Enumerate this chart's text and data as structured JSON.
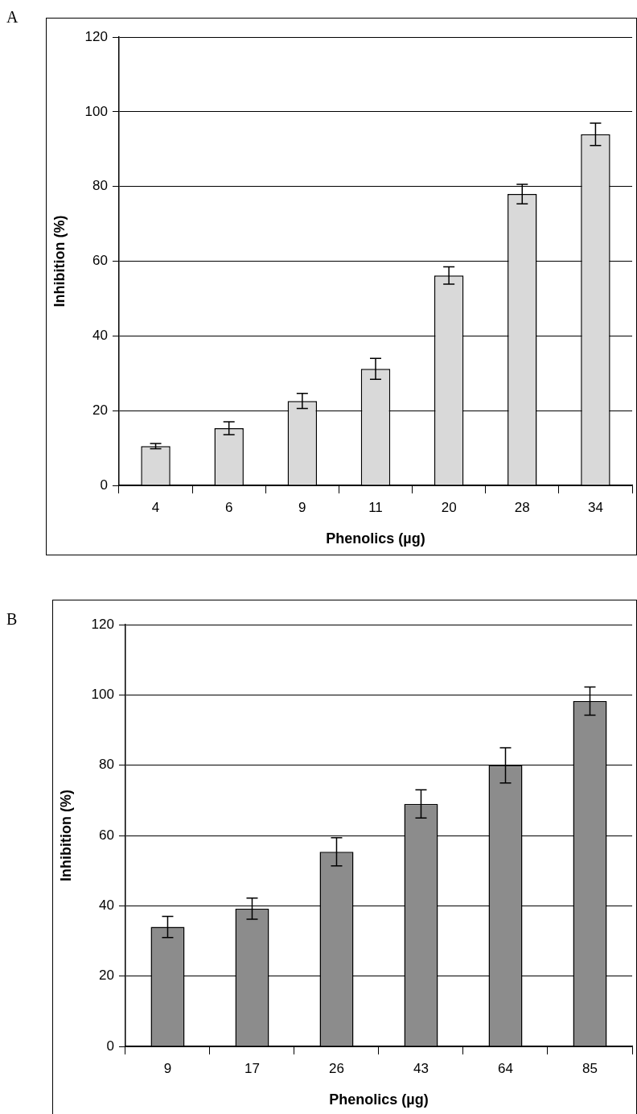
{
  "chart_data": [
    {
      "type": "bar",
      "title": "A",
      "xlabel": "Phenolics (µg)",
      "ylabel": "Inhibition (%)",
      "categories": [
        "4",
        "6",
        "9",
        "11",
        "20",
        "28",
        "34"
      ],
      "values": [
        10.5,
        15.3,
        22.6,
        31.2,
        56.2,
        78,
        94
      ],
      "errors": [
        0.7,
        1.7,
        2,
        2.8,
        2.3,
        2.6,
        3
      ],
      "color": "#d9d9d9",
      "ylim": [
        0,
        120
      ],
      "yticks": [
        0,
        20,
        40,
        60,
        80,
        100,
        120
      ],
      "grid": "y"
    },
    {
      "type": "bar",
      "title": "B",
      "xlabel": "Phenolics (µg)",
      "ylabel": "Inhibition (%)",
      "categories": [
        "9",
        "17",
        "26",
        "43",
        "64",
        "85"
      ],
      "values": [
        34,
        39.2,
        55.4,
        69,
        80,
        98.3
      ],
      "errors": [
        3,
        3,
        4,
        4,
        5,
        4
      ],
      "color": "#8c8c8c",
      "ylim": [
        0,
        120
      ],
      "yticks": [
        0,
        20,
        40,
        60,
        80,
        100,
        120
      ],
      "grid": "y"
    }
  ]
}
